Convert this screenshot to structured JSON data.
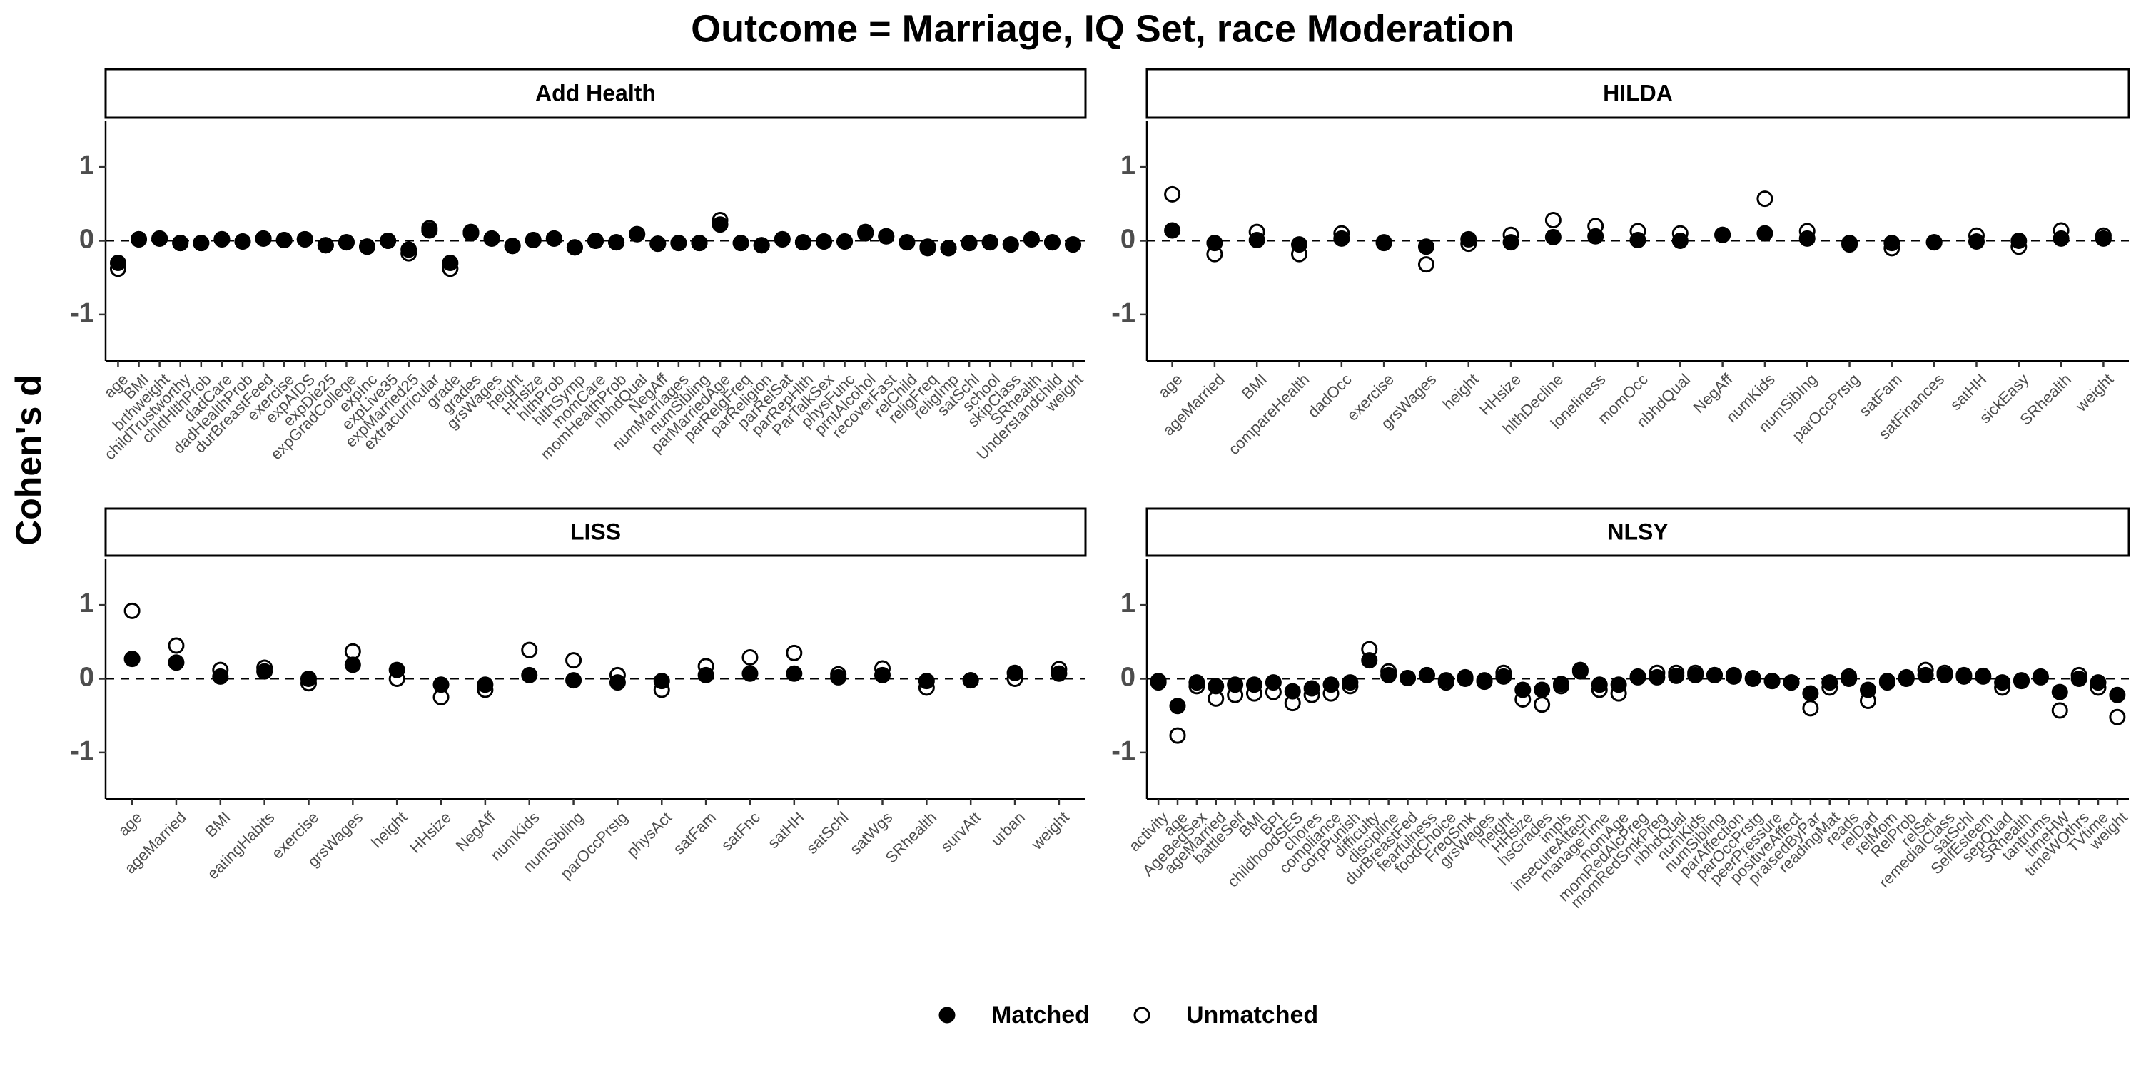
{
  "title": "Outcome = Marriage, IQ Set, race Moderation",
  "y_label": "Cohen's d",
  "legend": [
    {
      "name": "Matched",
      "color": "#000000",
      "filled": true
    },
    {
      "name": "Unmatched",
      "color": "#000000",
      "filled": false
    }
  ],
  "chart_data": [
    {
      "type": "scatter",
      "title": "Add Health",
      "ylim": [
        -1.63,
        1.63
      ],
      "yticks": [
        -1,
        0,
        1
      ],
      "reference_line": 0,
      "categories": [
        "age",
        "BMI",
        "brthweight",
        "childTrustworthy",
        "chldHlthProb",
        "dadCare",
        "dadHealthProb",
        "durBreastFeed",
        "exercise",
        "expAIDS",
        "expDie25",
        "expGradCollege",
        "expInc",
        "expLive35",
        "expMarried25",
        "extracurricular",
        "grade",
        "grades",
        "grsWages",
        "height",
        "HHsize",
        "hlthProb",
        "hlthSymp",
        "momCare",
        "momHealthProb",
        "nbhdQual",
        "NegAff",
        "numMarriages",
        "numSibling",
        "parMarriedAge",
        "parRelgFreq",
        "parReligion",
        "parRelSat",
        "parRepHlth",
        "ParTalkSex",
        "physFunc",
        "prntAlcohol",
        "recoverFast",
        "relChild",
        "religFreq",
        "religImp",
        "satSchl",
        "school",
        "skipClass",
        "SRhealth",
        "Understandchild",
        "weight"
      ],
      "series": [
        {
          "values": [
            -0.3,
            0.02,
            0.03,
            -0.03,
            -0.03,
            0.02,
            -0.01,
            0.03,
            0.01,
            0.02,
            -0.06,
            -0.02,
            -0.08,
            0.0,
            -0.12,
            0.14,
            -0.3,
            0.1,
            0.03,
            -0.07,
            0.01,
            0.03,
            -0.09,
            0.0,
            -0.02,
            0.09,
            -0.04,
            -0.03,
            -0.03,
            0.22,
            -0.03,
            -0.06,
            0.02,
            -0.02,
            -0.01,
            -0.01,
            0.1,
            0.06,
            -0.02,
            -0.1,
            -0.1,
            -0.03,
            -0.02,
            -0.05,
            0.02,
            -0.02,
            -0.05
          ]
        },
        {
          "values": [
            -0.38,
            0.02,
            0.03,
            -0.03,
            -0.03,
            0.02,
            -0.01,
            0.03,
            0.01,
            0.02,
            -0.06,
            -0.02,
            -0.08,
            0.0,
            -0.17,
            0.17,
            -0.38,
            0.12,
            0.03,
            -0.07,
            0.01,
            0.03,
            -0.09,
            0.0,
            -0.02,
            0.09,
            -0.04,
            -0.03,
            -0.03,
            0.28,
            -0.03,
            -0.06,
            0.02,
            -0.02,
            -0.01,
            -0.01,
            0.12,
            0.06,
            -0.02,
            -0.08,
            -0.1,
            -0.03,
            -0.02,
            -0.05,
            0.02,
            -0.02,
            -0.05
          ]
        }
      ]
    },
    {
      "type": "scatter",
      "title": "HILDA",
      "ylim": [
        -1.63,
        1.63
      ],
      "yticks": [
        -1,
        0,
        1
      ],
      "reference_line": 0,
      "categories": [
        "age",
        "ageMarried",
        "BMI",
        "compareHealth",
        "dadOcc",
        "exercise",
        "grsWages",
        "height",
        "HHsize",
        "hlthDecline",
        "loneliness",
        "momOcc",
        "nbhdQual",
        "NegAff",
        "numKids",
        "numSibIng",
        "parOccPrstg",
        "satFam",
        "satFinances",
        "satHH",
        "sickEasy",
        "SRhealth",
        "weight"
      ],
      "series": [
        {
          "values": [
            0.14,
            -0.03,
            0.01,
            -0.05,
            0.03,
            -0.02,
            -0.08,
            0.02,
            -0.02,
            0.05,
            0.06,
            0.01,
            0.0,
            0.08,
            0.1,
            0.03,
            -0.05,
            -0.03,
            -0.02,
            -0.01,
            0.0,
            0.03,
            0.03
          ]
        },
        {
          "values": [
            0.63,
            -0.18,
            0.12,
            -0.18,
            0.1,
            -0.03,
            -0.32,
            -0.04,
            0.08,
            0.28,
            0.2,
            0.13,
            0.1,
            0.08,
            0.57,
            0.13,
            -0.03,
            -0.1,
            -0.02,
            0.07,
            -0.08,
            0.14,
            0.07
          ]
        }
      ]
    },
    {
      "type": "scatter",
      "title": "LISS",
      "ylim": [
        -1.63,
        1.63
      ],
      "yticks": [
        -1,
        0,
        1
      ],
      "reference_line": 0,
      "categories": [
        "age",
        "ageMarried",
        "BMI",
        "eatingHabits",
        "exercise",
        "grsWages",
        "height",
        "HHsize",
        "NegAff",
        "numKids",
        "numSibling",
        "parOccPrstg",
        "physAct",
        "satFam",
        "satFnc",
        "satHH",
        "satSchl",
        "satWgs",
        "SRhealth",
        "survAtt",
        "urban",
        "weight"
      ],
      "series": [
        {
          "values": [
            0.27,
            0.22,
            0.03,
            0.1,
            0.0,
            0.19,
            0.12,
            -0.08,
            -0.08,
            0.05,
            -0.02,
            -0.05,
            -0.03,
            0.05,
            0.07,
            0.07,
            0.02,
            0.05,
            -0.03,
            -0.02,
            0.08,
            0.07
          ]
        },
        {
          "values": [
            0.92,
            0.45,
            0.12,
            0.15,
            -0.06,
            0.37,
            0.0,
            -0.25,
            -0.15,
            0.39,
            0.25,
            0.05,
            -0.15,
            0.17,
            0.29,
            0.35,
            0.06,
            0.14,
            -0.12,
            -0.02,
            0.0,
            0.13
          ]
        }
      ]
    },
    {
      "type": "scatter",
      "title": "NLSY",
      "ylim": [
        -1.63,
        1.63
      ],
      "yticks": [
        -1,
        0,
        1
      ],
      "reference_line": 0,
      "categories": [
        "activity",
        "age",
        "AgeBegSex",
        "ageMarried",
        "battleSelf",
        "BMI",
        "BPI",
        "childhoodSES",
        "chores",
        "compliance",
        "corpPunish",
        "difficulty",
        "discipline",
        "durBreastFed",
        "fearfulness",
        "foodChoice",
        "FreqSmk",
        "grsWages",
        "height",
        "HHsize",
        "hsGrades",
        "impls",
        "insecureAttach",
        "manageTime",
        "momAge",
        "momRedAlcPreg",
        "momRedSmkPreg",
        "nbhdQual",
        "numKids",
        "numSibling",
        "parAffection",
        "parOccPrstg",
        "peerPressure",
        "positiveAffect",
        "praisedByPar",
        "readingMat",
        "reads",
        "relDad",
        "relMom",
        "RelProb",
        "relSat",
        "remedialClass",
        "satSchl",
        "SelfEsteem",
        "sepQuad",
        "SRhealth",
        "tantrums",
        "timeHW",
        "timeWOthrs",
        "TVtime",
        "weight"
      ],
      "series": [
        {
          "values": [
            -0.03,
            -0.37,
            -0.05,
            -0.1,
            -0.08,
            -0.08,
            -0.05,
            -0.17,
            -0.13,
            -0.08,
            -0.05,
            0.25,
            0.05,
            0.01,
            0.05,
            -0.02,
            0.0,
            -0.02,
            0.03,
            -0.15,
            -0.15,
            -0.07,
            0.12,
            -0.08,
            -0.08,
            0.03,
            0.02,
            0.04,
            0.05,
            0.05,
            0.03,
            0.0,
            -0.03,
            -0.05,
            -0.2,
            -0.05,
            0.0,
            -0.15,
            -0.03,
            0.0,
            0.05,
            0.05,
            0.03,
            0.03,
            -0.05,
            -0.02,
            0.03,
            -0.18,
            0.0,
            -0.05,
            -0.22
          ]
        },
        {
          "values": [
            -0.05,
            -0.77,
            -0.1,
            -0.27,
            -0.22,
            -0.2,
            -0.18,
            -0.33,
            -0.22,
            -0.2,
            -0.1,
            0.4,
            0.1,
            0.01,
            0.05,
            -0.05,
            0.02,
            -0.04,
            0.08,
            -0.28,
            -0.35,
            -0.1,
            0.1,
            -0.15,
            -0.2,
            0.02,
            0.08,
            0.08,
            0.08,
            0.05,
            0.05,
            0.01,
            -0.03,
            -0.05,
            -0.4,
            -0.12,
            0.03,
            -0.3,
            -0.05,
            0.02,
            0.12,
            0.08,
            0.05,
            0.04,
            -0.12,
            -0.03,
            0.02,
            -0.43,
            0.05,
            -0.12,
            -0.52
          ]
        }
      ]
    }
  ]
}
